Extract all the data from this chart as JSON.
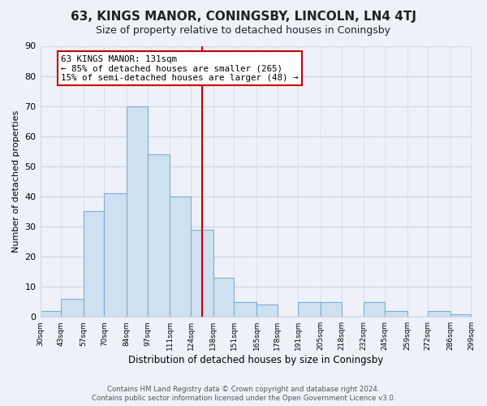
{
  "title": "63, KINGS MANOR, CONINGSBY, LINCOLN, LN4 4TJ",
  "subtitle": "Size of property relative to detached houses in Coningsby",
  "xlabel": "Distribution of detached houses by size in Coningsby",
  "ylabel": "Number of detached properties",
  "bin_edges": [
    30,
    43,
    57,
    70,
    84,
    97,
    111,
    124,
    138,
    151,
    165,
    178,
    191,
    205,
    218,
    232,
    245,
    259,
    272,
    286,
    299
  ],
  "bar_heights": [
    2,
    6,
    35,
    41,
    70,
    54,
    40,
    29,
    13,
    5,
    4,
    0,
    5,
    5,
    0,
    5,
    2,
    0,
    2,
    1
  ],
  "bar_color": "#cfe0f0",
  "bar_edgecolor": "#7bafd4",
  "vline_x": 131,
  "vline_color": "#cc0000",
  "annotation_title": "63 KINGS MANOR: 131sqm",
  "annotation_line1": "← 85% of detached houses are smaller (265)",
  "annotation_line2": "15% of semi-detached houses are larger (48) →",
  "annotation_box_edgecolor": "#cc0000",
  "ylim": [
    0,
    90
  ],
  "yticks": [
    0,
    10,
    20,
    30,
    40,
    50,
    60,
    70,
    80,
    90
  ],
  "tick_labels": [
    "30sqm",
    "43sqm",
    "57sqm",
    "70sqm",
    "84sqm",
    "97sqm",
    "111sqm",
    "124sqm",
    "138sqm",
    "151sqm",
    "165sqm",
    "178sqm",
    "191sqm",
    "205sqm",
    "218sqm",
    "232sqm",
    "245sqm",
    "259sqm",
    "272sqm",
    "286sqm",
    "299sqm"
  ],
  "footer_line1": "Contains HM Land Registry data © Crown copyright and database right 2024.",
  "footer_line2": "Contains public sector information licensed under the Open Government Licence v3.0.",
  "bg_color": "#eef2f8",
  "plot_bg_color": "#eef2f8",
  "grid_color": "#d0d8e8",
  "title_fontsize": 11,
  "subtitle_fontsize": 9
}
